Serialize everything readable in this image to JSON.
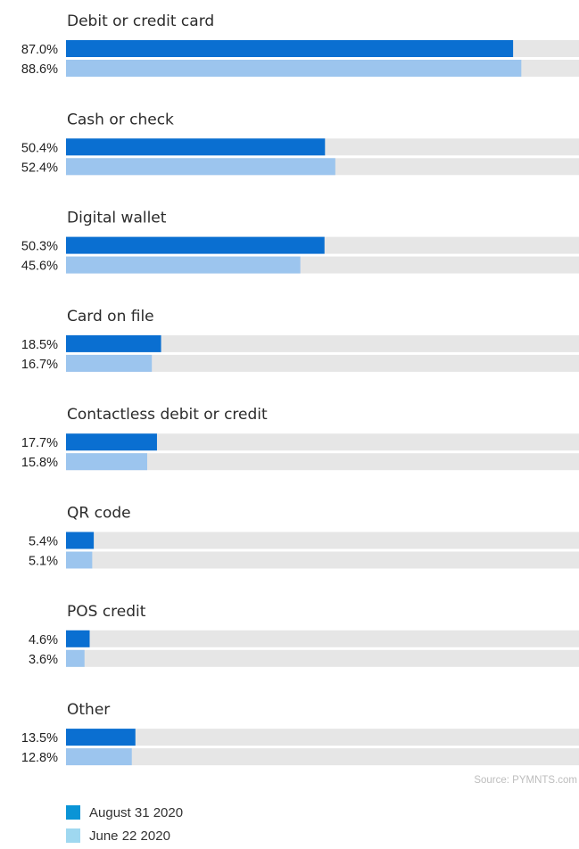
{
  "chart_data": {
    "type": "bar",
    "orientation": "horizontal",
    "categories": [
      "Debit or credit card",
      "Cash or check",
      "Digital wallet",
      "Card on file",
      "Contactless debit or credit",
      "QR code",
      "POS credit",
      "Other"
    ],
    "series": [
      {
        "name": "August 31 2020",
        "values": [
          87.0,
          50.4,
          50.3,
          18.5,
          17.7,
          5.4,
          4.6,
          13.5
        ],
        "labels": [
          "87.0%",
          "50.4%",
          "50.3%",
          "18.5%",
          "17.7%",
          "5.4%",
          "4.6%",
          "13.5%"
        ],
        "color": "#0a6fd1"
      },
      {
        "name": "June 22 2020",
        "values": [
          88.6,
          52.4,
          45.6,
          16.7,
          15.8,
          5.1,
          3.6,
          12.8
        ],
        "labels": [
          "88.6%",
          "52.4%",
          "45.6%",
          "16.7%",
          "15.8%",
          "5.1%",
          "3.6%",
          "12.8%"
        ],
        "color": "#9cc5ee"
      }
    ],
    "xlim": [
      0,
      100
    ],
    "track_color": "#e6e6e6",
    "legend_position": "bottom-left"
  },
  "source": "Source: PYMNTS.com",
  "legend": [
    {
      "label": "August 31 2020",
      "color": "#0a94d6"
    },
    {
      "label": "June 22 2020",
      "color": "#9fd8f0"
    }
  ]
}
